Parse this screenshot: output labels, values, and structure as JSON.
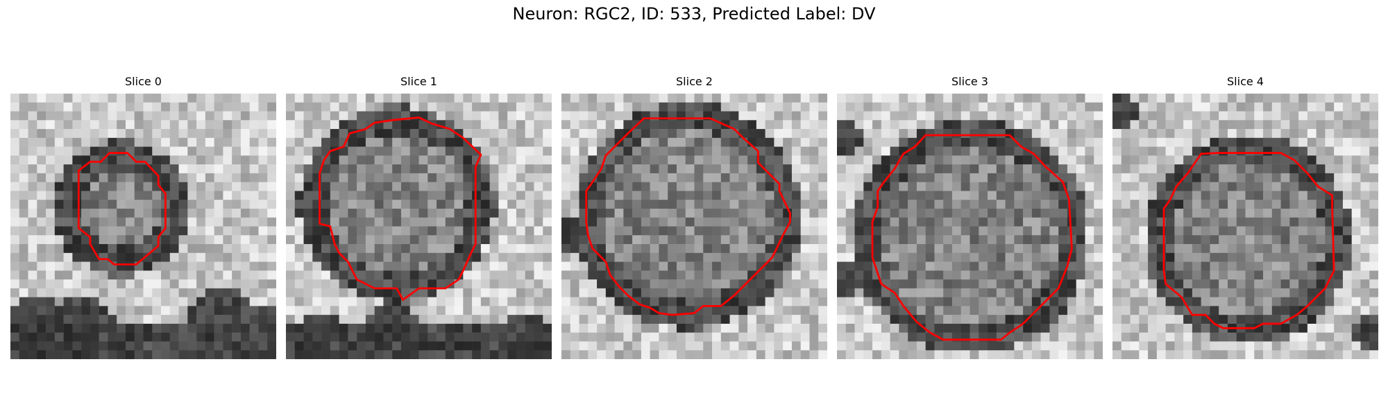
{
  "figure": {
    "title": "Neuron: RGC2, ID: 533, Predicted Label: DV"
  },
  "panels": [
    {
      "title": "Slice 0"
    },
    {
      "title": "Slice 1"
    },
    {
      "title": "Slice 2"
    },
    {
      "title": "Slice 3"
    },
    {
      "title": "Slice 4"
    }
  ],
  "colors": {
    "contour": "#ff0000",
    "background": "#ffffff"
  }
}
